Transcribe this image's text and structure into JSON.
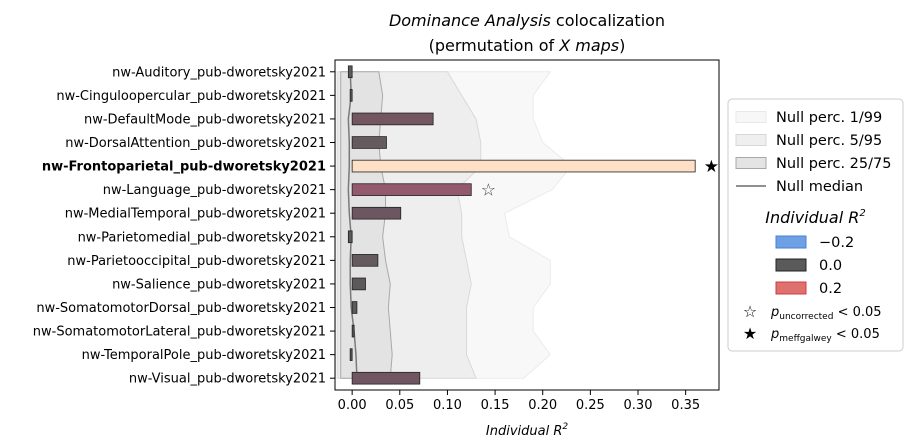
{
  "chart_data": {
    "type": "bar",
    "orientation": "horizontal",
    "title_italic": "Dominance Analysis",
    "title_rest": " colocalization",
    "subtitle_pre": "(permutation of ",
    "subtitle_italic": "X maps",
    "subtitle_post": ")",
    "xlabel": "Individual R",
    "xlabel_sup": "2",
    "xlim": [
      -0.018,
      0.385
    ],
    "xticks": [
      "0.00",
      "0.05",
      "0.10",
      "0.15",
      "0.20",
      "0.25",
      "0.30",
      "0.35"
    ],
    "xtick_values": [
      0,
      0.05,
      0.1,
      0.15,
      0.2,
      0.25,
      0.3,
      0.35
    ],
    "categories": [
      "nw-Auditory_pub-dworetsky2021",
      "nw-Cinguloopercular_pub-dworetsky2021",
      "nw-DefaultMode_pub-dworetsky2021",
      "nw-DorsalAttention_pub-dworetsky2021",
      "nw-Frontoparietal_pub-dworetsky2021",
      "nw-Language_pub-dworetsky2021",
      "nw-MedialTemporal_pub-dworetsky2021",
      "nw-Parietomedial_pub-dworetsky2021",
      "nw-Parietooccipital_pub-dworetsky2021",
      "nw-Salience_pub-dworetsky2021",
      "nw-SomatomotorDorsal_pub-dworetsky2021",
      "nw-SomatomotorLateral_pub-dworetsky2021",
      "nw-TemporalPole_pub-dworetsky2021",
      "nw-Visual_pub-dworetsky2021"
    ],
    "bold_category_index": 4,
    "values": [
      -0.004,
      -0.001,
      0.085,
      0.036,
      0.36,
      0.125,
      0.051,
      -0.004,
      0.027,
      0.014,
      0.005,
      0.001,
      -0.002,
      0.071
    ],
    "bar_colors": [
      "#5a5a5a",
      "#5a5a5a",
      "#735660",
      "#655a5e",
      "#fde0c5",
      "#935a6e",
      "#6c5760",
      "#5a5a5a",
      "#655a5e",
      "#5c5a5b",
      "#5a5a5a",
      "#5a5a5a",
      "#5a5a5a",
      "#705660"
    ],
    "markers": [
      {
        "index": 4,
        "symbol": "★",
        "filled": true,
        "x": 0.377
      },
      {
        "index": 5,
        "symbol": "☆",
        "filled": false,
        "x": 0.143
      }
    ],
    "null_bands": {
      "p1_99": {
        "lo": [
          -0.017,
          -0.017,
          -0.017,
          -0.017,
          -0.017,
          -0.017,
          -0.017,
          -0.017,
          -0.017,
          -0.017,
          -0.017,
          -0.017,
          -0.017,
          -0.017
        ],
        "hi": [
          0.208,
          0.19,
          0.19,
          0.2,
          0.23,
          0.21,
          0.16,
          0.165,
          0.208,
          0.208,
          0.19,
          0.19,
          0.208,
          0.18
        ]
      },
      "p5_95": {
        "lo": [
          -0.015,
          -0.015,
          -0.015,
          -0.015,
          -0.015,
          -0.015,
          -0.015,
          -0.015,
          -0.015,
          -0.015,
          -0.015,
          -0.015,
          -0.015,
          -0.015
        ],
        "hi": [
          0.1,
          0.115,
          0.13,
          0.135,
          0.135,
          0.11,
          0.115,
          0.115,
          0.12,
          0.125,
          0.12,
          0.12,
          0.12,
          0.13
        ]
      },
      "p25_75": {
        "lo": [
          -0.012,
          -0.012,
          -0.012,
          -0.012,
          -0.012,
          -0.012,
          -0.012,
          -0.012,
          -0.012,
          -0.012,
          -0.012,
          -0.012,
          -0.012,
          -0.012
        ],
        "hi": [
          0.028,
          0.032,
          0.03,
          0.028,
          0.03,
          0.035,
          0.035,
          0.032,
          0.035,
          0.04,
          0.038,
          0.04,
          0.042,
          0.04
        ]
      },
      "median": [
        -0.002,
        -0.001,
        -0.004,
        -0.003,
        -0.003,
        -0.004,
        -0.003,
        -0.001,
        -0.002,
        -0.002,
        -0.001,
        0.002,
        0.004,
        0.005
      ]
    },
    "legend": {
      "placement": "right",
      "items": [
        {
          "label": "Null perc. 1/99",
          "fill": "#f7f7f7",
          "stroke": "#e8e8e8"
        },
        {
          "label": "Null perc. 5/95",
          "fill": "#efefef",
          "stroke": "#d8d8d8"
        },
        {
          "label": "Null perc. 25/75",
          "fill": "#e4e4e4",
          "stroke": "#a8a8a8"
        },
        {
          "label": "Null median",
          "line": "#808080"
        }
      ],
      "subtitle": "Individual R",
      "subtitle_sup": "2",
      "color_items": [
        {
          "label": "−0.2",
          "fill": "#6fa0e5",
          "stroke": "#4a80d0"
        },
        {
          "label": "0.0",
          "fill": "#5a5a5a",
          "stroke": "#222222"
        },
        {
          "label": "0.2",
          "fill": "#e07070",
          "stroke": "#c84040"
        }
      ],
      "sig_items": [
        {
          "symbol": "☆",
          "p_label": "p",
          "p_sub": "uncorrected",
          "rest": " < 0.05"
        },
        {
          "symbol": "★",
          "p_label": "p",
          "p_sub": "meffgalwey",
          "rest": " < 0.05"
        }
      ]
    }
  }
}
